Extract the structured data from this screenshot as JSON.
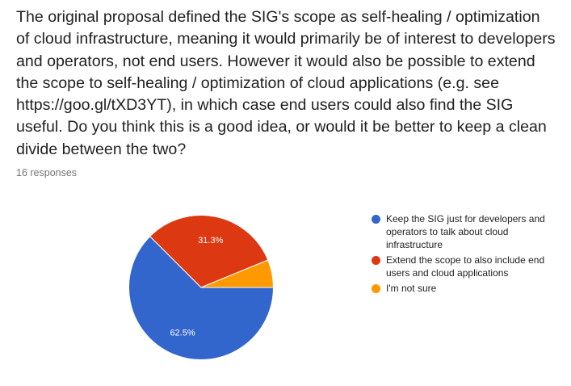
{
  "question": {
    "text": "The original proposal defined the SIG's scope as self-healing / optimization of cloud infrastructure, meaning it would primarily be of interest to developers and operators, not end users. However it would also be possible to extend the scope to self-healing / optimization of cloud applications (e.g. see https://goo.gl/tXD3YT), in which case end users could also find the SIG useful. Do you think this is a good idea, or would it be better to keep a clean divide between the two?"
  },
  "responses": {
    "label": "16 responses"
  },
  "chart_data": {
    "type": "pie",
    "title": "",
    "slices": [
      {
        "label": "Keep the SIG just for developers and operators to talk about cloud infrastructure",
        "value": 62.5,
        "display": "62.5%",
        "color": "#3366cc"
      },
      {
        "label": "Extend the scope to also include end users and cloud applications",
        "value": 31.3,
        "display": "31.3%",
        "color": "#dc3912"
      },
      {
        "label": "I'm not sure",
        "value": 6.2,
        "display": "",
        "color": "#ff9900"
      }
    ],
    "start": "3 o'clock",
    "direction": "clockwise",
    "legend_position": "right"
  }
}
